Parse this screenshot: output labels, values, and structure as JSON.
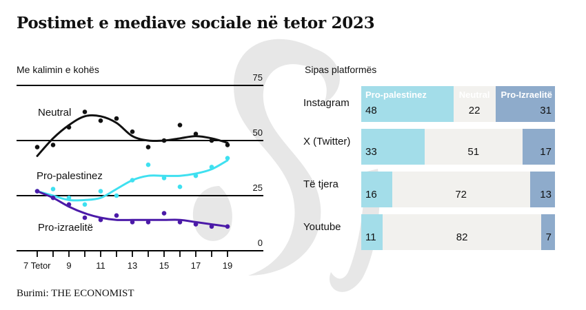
{
  "title": "Postimet e mediave sociale në tetor 2023",
  "source": "Burimi: THE ECONOMIST",
  "colors": {
    "neutral_line": "#111111",
    "pro_palestinian_line": "#3fe0f0",
    "pro_israeli_line": "#4b1aa8",
    "bar_pro_palestinian": "#a3dde9",
    "bar_neutral": "#f2f1ee",
    "bar_pro_israeli": "#8eabcb",
    "watermark": "#e6e6e6"
  },
  "chart_data": [
    {
      "type": "line",
      "title": "Me kalimin e kohës",
      "xlabel": "",
      "ylabel": "",
      "x": [
        7,
        8,
        9,
        10,
        11,
        12,
        13,
        14,
        15,
        16,
        17,
        18,
        19
      ],
      "xtick_labels": [
        "7 Tetor",
        "9",
        "11",
        "13",
        "15",
        "17",
        "19"
      ],
      "xticks": [
        7,
        9,
        11,
        13,
        15,
        17,
        19
      ],
      "ylim": [
        0,
        75
      ],
      "yticks": [
        0,
        25,
        50,
        75
      ],
      "ytick_labels": [
        "0",
        "25",
        "50",
        "75"
      ],
      "grid": true,
      "series": [
        {
          "name": "Neutral",
          "values": [
            47,
            48,
            56,
            63,
            59,
            60,
            54,
            47,
            50,
            57,
            53,
            50,
            48
          ],
          "trend": [
            43,
            51,
            57,
            61,
            61,
            58,
            52,
            50,
            50,
            51,
            52,
            51,
            49
          ]
        },
        {
          "name": "Pro-palestinez",
          "values": [
            27,
            28,
            24,
            21,
            27,
            25,
            32,
            39,
            33,
            29,
            34,
            38,
            42
          ],
          "trend": [
            27,
            25,
            23,
            23,
            24,
            28,
            32,
            34,
            34,
            34,
            35,
            37,
            41
          ]
        },
        {
          "name": "Pro-izraelitë",
          "values": [
            27,
            24,
            21,
            15,
            14,
            16,
            13,
            13,
            17,
            13,
            12,
            11,
            11
          ],
          "trend": [
            27,
            24,
            20,
            17,
            15,
            14,
            14,
            14,
            14,
            14,
            13,
            12,
            11
          ]
        }
      ]
    },
    {
      "type": "bar",
      "stacked": true,
      "orientation": "horizontal",
      "title": "Sipas platformës",
      "categories": [
        "Instagram",
        "X (Twitter)",
        "Të tjera",
        "Youtube"
      ],
      "series": [
        {
          "name": "Pro-palestinez",
          "values": [
            48,
            33,
            16,
            11
          ]
        },
        {
          "name": "Neutral",
          "values": [
            22,
            51,
            72,
            82
          ]
        },
        {
          "name": "Pro-Izraelitë",
          "values": [
            31,
            17,
            13,
            7
          ]
        }
      ]
    }
  ]
}
